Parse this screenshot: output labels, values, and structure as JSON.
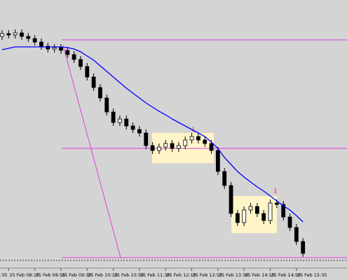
{
  "chart_data": {
    "type": "candlestick",
    "leading_label": ":35",
    "categories": [
      null,
      "25 Feb 08:15",
      null,
      null,
      null,
      "25 Feb 08:55",
      null,
      null,
      null,
      "25 Feb 09:35",
      null,
      null,
      null,
      "25 Feb 10:15",
      null,
      null,
      null,
      "25 Feb 10:55",
      null,
      null,
      null,
      "25 Feb 11:35",
      null,
      null,
      null,
      "25 Feb 12:15",
      null,
      null,
      null,
      "25 Feb 12:55",
      null,
      null,
      null,
      "25 Feb 13:35",
      null,
      null,
      null,
      "25 Feb 14:15",
      null,
      null,
      null,
      "25 Feb 14:55",
      null,
      null,
      null,
      "25 Feb 15:35",
      null
    ],
    "open": [
      318,
      322,
      320,
      323,
      318,
      315,
      310,
      304,
      300,
      302,
      298,
      292,
      285,
      275,
      260,
      245,
      230,
      210,
      195,
      200,
      190,
      185,
      180,
      162,
      155,
      160,
      165,
      158,
      162,
      170,
      175,
      170,
      165,
      155,
      125,
      105,
      65,
      52,
      70,
      75,
      65,
      55,
      80,
      78,
      60,
      45,
      25
    ],
    "high": [
      327,
      327,
      328,
      328,
      323,
      320,
      315,
      309,
      307,
      307,
      303,
      297,
      290,
      280,
      265,
      250,
      235,
      215,
      205,
      205,
      195,
      190,
      185,
      167,
      165,
      170,
      170,
      167,
      175,
      180,
      180,
      175,
      170,
      160,
      130,
      110,
      70,
      75,
      80,
      80,
      70,
      85,
      85,
      83,
      65,
      50,
      30
    ],
    "low": [
      313,
      315,
      315,
      313,
      310,
      305,
      299,
      295,
      295,
      293,
      287,
      280,
      270,
      255,
      240,
      225,
      205,
      190,
      190,
      185,
      180,
      175,
      157,
      150,
      150,
      155,
      153,
      153,
      157,
      165,
      165,
      160,
      150,
      120,
      100,
      60,
      47,
      47,
      65,
      60,
      50,
      50,
      73,
      55,
      40,
      20,
      3
    ],
    "close": [
      322,
      320,
      323,
      318,
      315,
      310,
      304,
      300,
      302,
      298,
      292,
      285,
      275,
      260,
      245,
      230,
      210,
      195,
      200,
      190,
      185,
      180,
      162,
      155,
      160,
      165,
      158,
      162,
      170,
      175,
      170,
      165,
      155,
      125,
      105,
      65,
      52,
      70,
      75,
      65,
      55,
      80,
      78,
      60,
      45,
      25,
      8
    ],
    "ma": {
      "color": "#0000ff",
      "values": [
        299,
        301,
        303,
        303,
        303,
        303,
        303,
        303,
        303,
        303,
        302,
        300,
        296,
        290,
        284,
        276,
        268,
        260,
        252,
        244,
        237,
        230,
        223,
        217,
        211,
        206,
        200,
        195,
        190,
        185,
        180,
        175,
        167,
        158,
        145,
        135,
        125,
        117,
        110,
        103,
        97,
        90,
        83,
        76,
        70,
        62,
        53
      ]
    },
    "ylim": [
      0,
      370
    ]
  }
}
